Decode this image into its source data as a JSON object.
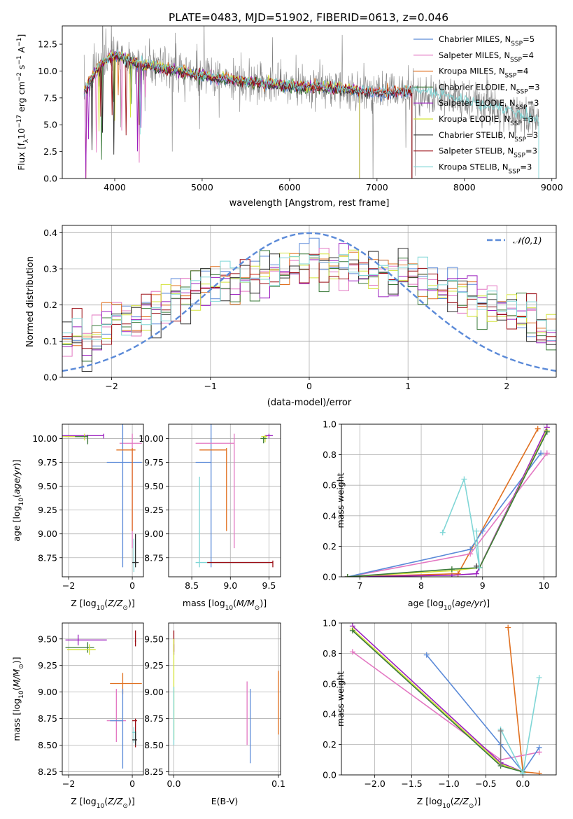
{
  "figure_title": "PLATE=0483, MJD=51902, FIBERID=0613, z=0.046",
  "chart_data": [
    {
      "id": "spectrum",
      "type": "line",
      "title": "PLATE=0483, MJD=51902, FIBERID=0613, z=0.046",
      "xlabel": "wavelength [Angstrom, rest frame]",
      "ylabel": "Flux [f_λ 10^-17 erg cm^-2 s^-1 A^-1]",
      "xlim": [
        3400,
        9050
      ],
      "ylim": [
        0,
        14.2
      ],
      "xticks": [
        4000,
        5000,
        6000,
        7000,
        8000,
        9000
      ],
      "yticks": [
        0.0,
        2.5,
        5.0,
        7.5,
        10.0,
        12.5
      ],
      "grid": false,
      "legend_position": "top-right",
      "data_coverage": [
        3650,
        8850
      ],
      "continuum": {
        "x": [
          3650,
          3750,
          3850,
          3950,
          4050,
          4150,
          4300,
          4500,
          4800,
          5200,
          5600,
          6000,
          6300,
          6600,
          7000,
          7400,
          7800,
          8200,
          8600,
          8850
        ],
        "y": [
          8.0,
          9.5,
          10.7,
          11.3,
          11.4,
          11.1,
          10.6,
          10.3,
          9.9,
          9.3,
          8.9,
          8.6,
          8.5,
          8.3,
          8.0,
          8.1,
          7.6,
          6.9,
          6.0,
          5.3
        ]
      },
      "observed_series": {
        "name": "data",
        "color": "#808080"
      },
      "series": [
        {
          "name": "Chabrier MILES, N_SSP=5",
          "color": "#5b8ad8",
          "x_end": 7400
        },
        {
          "name": "Salpeter MILES, N_SSP=4",
          "color": "#e377c2",
          "x_end": 7400
        },
        {
          "name": "Kroupa MILES, N_SSP=4",
          "color": "#e07020",
          "x_end": 7400
        },
        {
          "name": "Chabrier ELODIE, N_SSP=3",
          "color": "#3a7a3a",
          "x_end": 6800
        },
        {
          "name": "Salpeter ELODIE, N_SSP=3",
          "color": "#9b1fbf",
          "x_end": 6800
        },
        {
          "name": "Kroupa ELODIE, N_SSP=3",
          "color": "#d4e33b",
          "x_end": 6800
        },
        {
          "name": "Chabrier STELIB, N_SSP=3",
          "color": "#303030",
          "x_end": 7400
        },
        {
          "name": "Salpeter STELIB, N_SSP=3",
          "color": "#9b0d14",
          "x_end": 7400
        },
        {
          "name": "Kroupa STELIB, N_SSP=3",
          "color": "#7fd6d6",
          "x_end": 8850
        }
      ]
    },
    {
      "id": "residuals",
      "type": "line",
      "xlabel": "(data-model)/error",
      "ylabel": "Normed distribution",
      "xlim": [
        -2.5,
        2.5
      ],
      "ylim": [
        0,
        0.42
      ],
      "xticks": [
        -2,
        -1,
        0,
        1,
        2
      ],
      "yticks": [
        0.0,
        0.1,
        0.2,
        0.3,
        0.4
      ],
      "grid": true,
      "legend_position": "top-right",
      "reference_curve": {
        "name": "𝒩(0,1)",
        "color": "#5b8ad8",
        "style": "dashed",
        "mean": 0,
        "sigma": 1
      },
      "histogram": {
        "bin_width": 0.1,
        "base_density": [
          0.09,
          0.1,
          0.1,
          0.11,
          0.1,
          0.12,
          0.14,
          0.16,
          0.15,
          0.17,
          0.18,
          0.19,
          0.2,
          0.22,
          0.23,
          0.23,
          0.25,
          0.25,
          0.27,
          0.27,
          0.28,
          0.29,
          0.3,
          0.3,
          0.3,
          0.3,
          0.3,
          0.31,
          0.3,
          0.31,
          0.31,
          0.31,
          0.3,
          0.3,
          0.29,
          0.28,
          0.28,
          0.28,
          0.27,
          0.26,
          0.24,
          0.24,
          0.22,
          0.22,
          0.2,
          0.2,
          0.18,
          0.17,
          0.16,
          0.14,
          0.13,
          0.12,
          0.11,
          0.1,
          0.09,
          0.08,
          0.07,
          0.07,
          0.06,
          0.06,
          0.05,
          0.05,
          0.05,
          0.05,
          0.05
        ],
        "x_start": -2.7
      }
    },
    {
      "id": "age-vs-Z",
      "type": "scatter",
      "xlabel": "Z [log10(Z/Z⊙)]",
      "ylabel": "age  [log10(age/yr)]",
      "xlim": [
        -2.2,
        0.35
      ],
      "ylim": [
        8.55,
        10.15
      ],
      "xticks": [
        -2,
        0
      ],
      "yticks": [
        8.75,
        9.0,
        9.25,
        9.5,
        9.75,
        10.0
      ],
      "grid": true,
      "points": [
        {
          "x": -0.9,
          "y": 10.03,
          "xerr": [
            1.3,
            0.0
          ],
          "yerr": [
            0.03,
            0.02
          ],
          "color": "#9b1fbf"
        },
        {
          "x": -1.4,
          "y": 10.02,
          "xerr": [
            0.7,
            0.0
          ],
          "yerr": [
            0.06,
            0.02
          ],
          "color": "#e377c2"
        },
        {
          "x": -1.5,
          "y": 10.02,
          "xerr": [
            0.7,
            0.0
          ],
          "yerr": [
            0.04,
            0.03
          ],
          "color": "#d4e33b"
        },
        {
          "x": -1.4,
          "y": 10.02,
          "xerr": [
            0.4,
            0.0
          ],
          "yerr": [
            0.08,
            0.02
          ],
          "color": "#3a7a3a"
        },
        {
          "x": 0.0,
          "y": 9.95,
          "xerr": [
            0.4,
            0.3
          ],
          "yerr": [
            1.1,
            0.1
          ],
          "color": "#e377c2"
        },
        {
          "x": -0.3,
          "y": 9.75,
          "xerr": [
            0.5,
            0.6
          ],
          "yerr": [
            1.1,
            0.4
          ],
          "color": "#5b8ad8"
        },
        {
          "x": 0.0,
          "y": 9.88,
          "xerr": [
            0.5,
            0.1
          ],
          "yerr": [
            0.85,
            0.02
          ],
          "color": "#e07020"
        },
        {
          "x": 0.05,
          "y": 8.7,
          "xerr": [
            0.05,
            0.1
          ],
          "yerr": [
            0.1,
            0.25
          ],
          "color": "#7fd6d6"
        },
        {
          "x": 0.1,
          "y": 8.7,
          "xerr": [
            0.1,
            0.1
          ],
          "yerr": [
            0.05,
            0.3
          ],
          "color": "#303030"
        }
      ]
    },
    {
      "id": "age-vs-mass",
      "type": "scatter",
      "xlabel": "mass [log10(M/M⊙)]",
      "ylabel": "",
      "xlim": [
        8.2,
        9.65
      ],
      "ylim": [
        8.55,
        10.15
      ],
      "xticks": [
        8.5,
        9.0,
        9.5
      ],
      "yticks": [
        8.75,
        9.0,
        9.25,
        9.5,
        9.75,
        10.0
      ],
      "grid": true,
      "points": [
        {
          "x": 9.5,
          "y": 10.03,
          "xerr": [
            0.05,
            0.05
          ],
          "yerr": [
            0.03,
            0.02
          ],
          "color": "#9b1fbf"
        },
        {
          "x": 9.45,
          "y": 10.02,
          "xerr": [
            0.05,
            0.03
          ],
          "yerr": [
            0.06,
            0.02
          ],
          "color": "#d4e33b"
        },
        {
          "x": 9.43,
          "y": 10.0,
          "xerr": [
            0.04,
            0.04
          ],
          "yerr": [
            0.05,
            0.02
          ],
          "color": "#3a7a3a"
        },
        {
          "x": 8.75,
          "y": 9.75,
          "xerr": [
            0.2,
            0.0
          ],
          "yerr": [
            1.1,
            0.4
          ],
          "color": "#5b8ad8"
        },
        {
          "x": 9.05,
          "y": 9.95,
          "xerr": [
            0.5,
            0.0
          ],
          "yerr": [
            1.1,
            0.1
          ],
          "color": "#e377c2"
        },
        {
          "x": 8.95,
          "y": 9.88,
          "xerr": [
            0.35,
            0.0
          ],
          "yerr": [
            0.85,
            0.02
          ],
          "color": "#e07020"
        },
        {
          "x": 8.6,
          "y": 8.7,
          "xerr": [
            0.05,
            0.9
          ],
          "yerr": [
            0.05,
            0.9
          ],
          "color": "#7fd6d6"
        },
        {
          "x": 9.55,
          "y": 8.7,
          "xerr": [
            0.85,
            0.0
          ],
          "yerr": [
            0.05,
            0.02
          ],
          "color": "#9b0d14"
        }
      ]
    },
    {
      "id": "weight-vs-age",
      "type": "line",
      "xlabel": "age  [log10(age/yr)]",
      "ylabel": "mass weight",
      "xlim": [
        6.7,
        10.2
      ],
      "ylim": [
        0.0,
        1.0
      ],
      "xticks": [
        7,
        8,
        9,
        10
      ],
      "yticks": [
        0.0,
        0.2,
        0.4,
        0.6,
        0.8,
        1.0
      ],
      "grid": true,
      "series": [
        {
          "color": "#e07020",
          "x": [
            6.8,
            8.6,
            9.9
          ],
          "y": [
            0.0,
            0.02,
            0.97
          ]
        },
        {
          "color": "#e377c2",
          "x": [
            6.8,
            8.8,
            10.05
          ],
          "y": [
            0.0,
            0.15,
            0.81
          ]
        },
        {
          "color": "#5b8ad8",
          "x": [
            6.8,
            8.8,
            9.0,
            9.95
          ],
          "y": [
            0.0,
            0.18,
            0.3,
            0.81
          ]
        },
        {
          "color": "#9b1fbf",
          "x": [
            6.8,
            8.5,
            8.9,
            10.05
          ],
          "y": [
            0.0,
            0.01,
            0.02,
            0.98
          ]
        },
        {
          "color": "#d4e33b",
          "x": [
            6.8,
            8.5,
            8.95,
            10.05
          ],
          "y": [
            0.0,
            0.04,
            0.06,
            0.96
          ]
        },
        {
          "color": "#3a7a3a",
          "x": [
            6.8,
            8.5,
            8.95,
            10.05
          ],
          "y": [
            0.0,
            0.05,
            0.06,
            0.95
          ]
        },
        {
          "color": "#7fd6d6",
          "x": [
            8.35,
            8.7,
            8.95,
            8.9
          ],
          "y": [
            0.29,
            0.64,
            0.06,
            0.3
          ]
        },
        {
          "color": "#303030",
          "x": [
            8.9
          ],
          "y": [
            0.07
          ]
        }
      ]
    },
    {
      "id": "mass-vs-Z",
      "type": "scatter",
      "xlabel": "Z [log10(Z/Z⊙)]",
      "ylabel": "mass [log10(M/M⊙)]",
      "xlim": [
        -2.2,
        0.35
      ],
      "ylim": [
        8.22,
        9.65
      ],
      "xticks": [
        -2,
        0
      ],
      "yticks": [
        8.25,
        8.5,
        8.75,
        9.0,
        9.25,
        9.5
      ],
      "grid": true,
      "points": [
        {
          "x": -1.7,
          "y": 9.49,
          "xerr": [
            0.4,
            0.9
          ],
          "yerr": [
            0.05,
            0.05
          ],
          "color": "#9b1fbf"
        },
        {
          "x": -1.4,
          "y": 9.42,
          "xerr": [
            0.7,
            0.2
          ],
          "yerr": [
            0.05,
            0.05
          ],
          "color": "#3a7a3a"
        },
        {
          "x": -1.35,
          "y": 9.4,
          "xerr": [
            0.7,
            0.2
          ],
          "yerr": [
            0.05,
            0.05
          ],
          "color": "#d4e33b"
        },
        {
          "x": -0.3,
          "y": 9.08,
          "xerr": [
            0.4,
            0.6
          ],
          "yerr": [
            0.1,
            0.1
          ],
          "color": "#e07020"
        },
        {
          "x": -0.5,
          "y": 8.73,
          "xerr": [
            0.3,
            0.3
          ],
          "yerr": [
            0.2,
            0.3
          ],
          "color": "#e377c2"
        },
        {
          "x": -0.3,
          "y": 8.73,
          "xerr": [
            0.4,
            0.0
          ],
          "yerr": [
            0.45,
            0.3
          ],
          "color": "#5b8ad8"
        },
        {
          "x": 0.1,
          "y": 9.48,
          "xerr": [
            0.02,
            0.02
          ],
          "yerr": [
            0.05,
            0.1
          ],
          "color": "#9b0d14"
        },
        {
          "x": 0.1,
          "y": 8.73,
          "xerr": [
            0.1,
            0.05
          ],
          "yerr": [
            0.25,
            0.02
          ],
          "color": "#9b0d14"
        },
        {
          "x": 0.05,
          "y": 8.62,
          "xerr": [
            0.05,
            0.05
          ],
          "yerr": [
            0.1,
            0.05
          ],
          "color": "#7fd6d6"
        },
        {
          "x": 0.1,
          "y": 8.55,
          "xerr": [
            0.1,
            0.05
          ],
          "yerr": [
            0.05,
            0.08
          ],
          "color": "#303030"
        }
      ]
    },
    {
      "id": "mass-vs-EBV",
      "type": "scatter",
      "xlabel": "E(B-V)",
      "ylabel": "",
      "xlim": [
        -0.005,
        0.102
      ],
      "ylim": [
        8.22,
        9.65
      ],
      "xticks": [
        0.0,
        0.1
      ],
      "xtick_labels": [
        "0.0",
        "0.1"
      ],
      "yticks": [
        8.25,
        8.5,
        8.75,
        9.0,
        9.25,
        9.5
      ],
      "grid": true,
      "points": [
        {
          "x": 0.0,
          "y": 9.48,
          "yerr": [
            0.1,
            0.1
          ],
          "color": "#9b0d14"
        },
        {
          "x": 0.0,
          "y": 9.4,
          "yerr": [
            0.05,
            0.05
          ],
          "color": "#9b1fbf"
        },
        {
          "x": 0.0,
          "y": 9.2,
          "yerr": [
            0.65,
            0.3
          ],
          "color": "#d4e33b"
        },
        {
          "x": 0.0,
          "y": 8.8,
          "yerr": [
            0.3,
            0.25
          ],
          "color": "#7fd6d6"
        },
        {
          "x": 0.07,
          "y": 8.9,
          "yerr": [
            0.4,
            0.2
          ],
          "color": "#e377c2"
        },
        {
          "x": 0.073,
          "y": 8.73,
          "yerr": [
            0.4,
            0.3
          ],
          "color": "#5b8ad8"
        },
        {
          "x": 0.1,
          "y": 8.9,
          "yerr": [
            0.3,
            0.3
          ],
          "color": "#e07020"
        }
      ]
    },
    {
      "id": "weight-vs-Z",
      "type": "line",
      "xlabel": "Z [log10(Z/Z⊙)]",
      "ylabel": "mass weight",
      "xlim": [
        -2.45,
        0.45
      ],
      "ylim": [
        0.0,
        1.0
      ],
      "xticks": [
        -2.0,
        -1.5,
        -1.0,
        -0.5,
        0.0
      ],
      "yticks": [
        0.0,
        0.2,
        0.4,
        0.6,
        0.8,
        1.0
      ],
      "grid": true,
      "series": [
        {
          "color": "#e07020",
          "x": [
            -0.2,
            0.0,
            0.22
          ],
          "y": [
            0.97,
            0.02,
            0.01
          ]
        },
        {
          "color": "#e377c2",
          "x": [
            -2.3,
            -0.3,
            0.22
          ],
          "y": [
            0.81,
            0.1,
            0.15
          ]
        },
        {
          "color": "#5b8ad8",
          "x": [
            -1.3,
            -0.3,
            0.0,
            0.22
          ],
          "y": [
            0.79,
            0.2,
            0.02,
            0.18
          ]
        },
        {
          "color": "#9b1fbf",
          "x": [
            -2.3,
            -0.3,
            0.0
          ],
          "y": [
            0.98,
            0.08,
            0.02
          ]
        },
        {
          "color": "#d4e33b",
          "x": [
            -2.3,
            -0.3,
            0.0
          ],
          "y": [
            0.96,
            0.07,
            0.02
          ]
        },
        {
          "color": "#3a7a3a",
          "x": [
            -2.3,
            -0.3,
            0.0
          ],
          "y": [
            0.95,
            0.06,
            0.02
          ]
        },
        {
          "color": "#7fd6d6",
          "x": [
            -0.3,
            0.0,
            0.22
          ],
          "y": [
            0.3,
            0.01,
            0.64
          ]
        },
        {
          "color": "#808080",
          "x": [
            -0.3,
            -0.3
          ],
          "y": [
            0.07,
            0.29
          ]
        }
      ]
    }
  ]
}
